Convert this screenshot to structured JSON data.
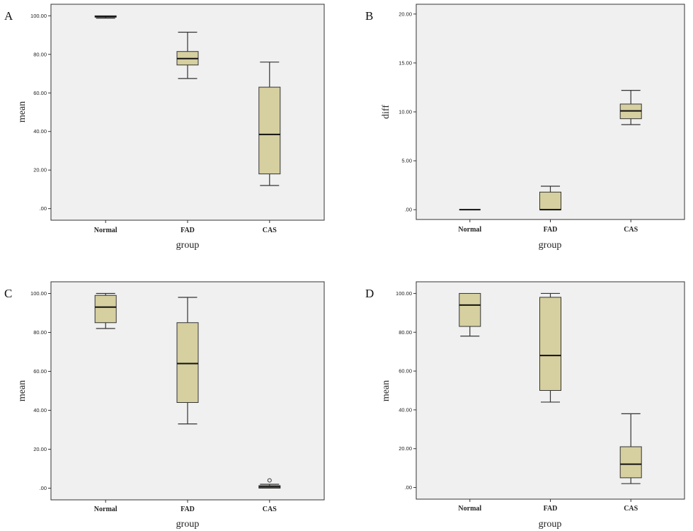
{
  "chart_data": [
    {
      "panel": "A",
      "type": "box",
      "xlabel": "group",
      "ylabel": "mean",
      "categories": [
        "Normal",
        "FAD",
        "CAS"
      ],
      "yticks": [
        ".00",
        "20.00",
        "40.00",
        "60.00",
        "80.00",
        "100.00"
      ],
      "ylim": [
        -6,
        106
      ],
      "boxes": [
        {
          "min": 98.8,
          "q1": 99.3,
          "median": 99.6,
          "q3": 100,
          "max": 100
        },
        {
          "min": 67.5,
          "q1": 74.5,
          "median": 77.8,
          "q3": 81.5,
          "max": 91.5
        },
        {
          "min": 12,
          "q1": 18,
          "median": 38.5,
          "q3": 63,
          "max": 76
        }
      ],
      "outliers": [
        [],
        [],
        []
      ]
    },
    {
      "panel": "B",
      "type": "box",
      "xlabel": "group",
      "ylabel": "diff",
      "categories": [
        "Normal",
        "FAD",
        "CAS"
      ],
      "yticks": [
        ".00",
        "5.00",
        "10.00",
        "15.00",
        "20.00"
      ],
      "ylim": [
        -1,
        21
      ],
      "boxes": [
        {
          "min": 0,
          "q1": 0,
          "median": 0,
          "q3": 0,
          "max": 0
        },
        {
          "min": 0,
          "q1": 0,
          "median": 0,
          "q3": 1.8,
          "max": 2.4
        },
        {
          "min": 8.7,
          "q1": 9.3,
          "median": 10.1,
          "q3": 10.8,
          "max": 12.2
        }
      ],
      "outliers": [
        [],
        [],
        []
      ]
    },
    {
      "panel": "C",
      "type": "box",
      "xlabel": "group",
      "ylabel": "mean",
      "categories": [
        "Normal",
        "FAD",
        "CAS"
      ],
      "yticks": [
        ".00",
        "20.00",
        "40.00",
        "60.00",
        "80.00",
        "100.00"
      ],
      "ylim": [
        -6,
        106
      ],
      "boxes": [
        {
          "min": 82,
          "q1": 85,
          "median": 93,
          "q3": 99,
          "max": 100
        },
        {
          "min": 33,
          "q1": 44,
          "median": 64,
          "q3": 85,
          "max": 98
        },
        {
          "min": 0,
          "q1": 0,
          "median": 0.7,
          "q3": 1.3,
          "max": 2
        }
      ],
      "outliers": [
        [],
        [],
        [
          4
        ]
      ]
    },
    {
      "panel": "D",
      "type": "box",
      "xlabel": "group",
      "ylabel": "mean",
      "categories": [
        "Normal",
        "FAD",
        "CAS"
      ],
      "yticks": [
        ".00",
        "20.00",
        "40.00",
        "60.00",
        "80.00",
        "100.00"
      ],
      "ylim": [
        -6,
        106
      ],
      "boxes": [
        {
          "min": 78,
          "q1": 83,
          "median": 94,
          "q3": 100,
          "max": 100
        },
        {
          "min": 44,
          "q1": 50,
          "median": 68,
          "q3": 98,
          "max": 100
        },
        {
          "min": 2,
          "q1": 5,
          "median": 12,
          "q3": 21,
          "max": 38
        }
      ],
      "outliers": [
        [],
        [],
        []
      ]
    }
  ],
  "style": {
    "box_fill": "#d6cf9f",
    "box_stroke": "#333333",
    "plot_bg": "#f0f0f0",
    "median_color": "#111111"
  }
}
